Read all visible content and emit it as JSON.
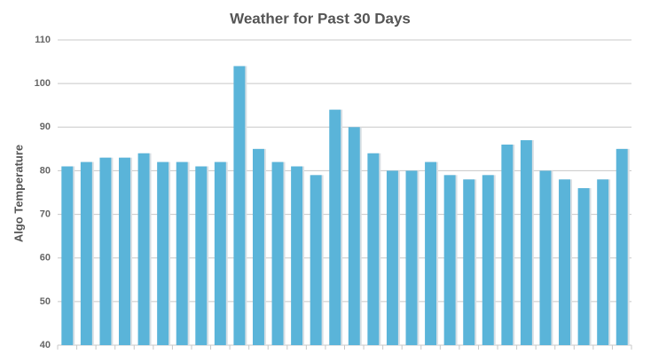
{
  "chart_data": {
    "type": "bar",
    "title": "Weather for Past 30 Days",
    "y_label": "Algo Temperature",
    "categories": [
      null,
      null,
      null,
      null,
      null,
      null,
      null,
      null,
      null,
      null,
      null,
      null,
      null,
      null,
      null,
      null,
      null,
      null,
      null,
      null,
      null,
      null,
      null,
      null,
      null,
      null,
      null,
      null,
      null,
      null
    ],
    "values": [
      81,
      82,
      83,
      83,
      84,
      82,
      82,
      81,
      82,
      104,
      85,
      82,
      81,
      79,
      94,
      90,
      84,
      80,
      80,
      82,
      79,
      78,
      79,
      86,
      87,
      80,
      78,
      76,
      78,
      85
    ],
    "color": "#5ab4d9",
    "ylim": [
      40,
      110
    ],
    "yticks": [
      40,
      50,
      60,
      70,
      80,
      90,
      100,
      110
    ],
    "grid": true
  }
}
